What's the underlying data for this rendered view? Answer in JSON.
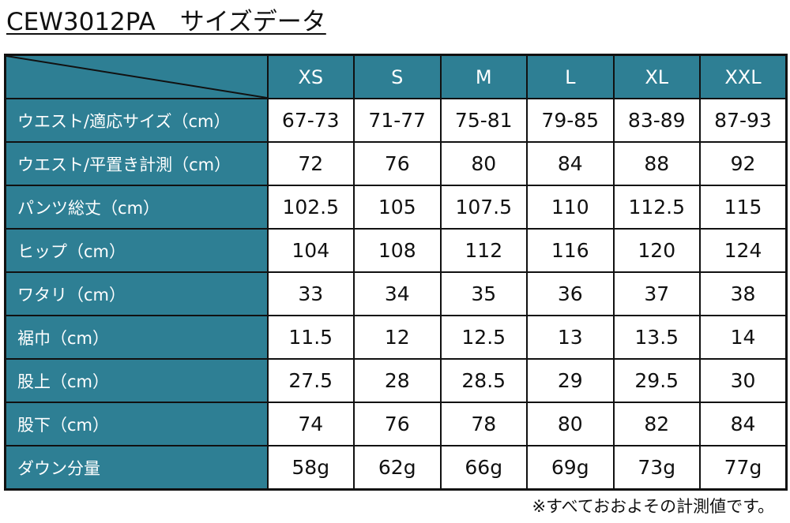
{
  "header": {
    "title": "CEW3012PA　サイズデータ"
  },
  "table": {
    "columns": [
      "XS",
      "S",
      "M",
      "L",
      "XL",
      "XXL"
    ],
    "rows": [
      {
        "label": "ウエスト/適応サイズ（cm）",
        "values": [
          "67-73",
          "71-77",
          "75-81",
          "79-85",
          "83-89",
          "87-93"
        ]
      },
      {
        "label": "ウエスト/平置き計測（cm）",
        "values": [
          "72",
          "76",
          "80",
          "84",
          "88",
          "92"
        ]
      },
      {
        "label": "パンツ総丈（cm）",
        "values": [
          "102.5",
          "105",
          "107.5",
          "110",
          "112.5",
          "115"
        ]
      },
      {
        "label": "ヒップ（cm）",
        "values": [
          "104",
          "108",
          "112",
          "116",
          "120",
          "124"
        ]
      },
      {
        "label": "ワタリ（cm）",
        "values": [
          "33",
          "34",
          "35",
          "36",
          "37",
          "38"
        ]
      },
      {
        "label": "裾巾（cm）",
        "values": [
          "11.5",
          "12",
          "12.5",
          "13",
          "13.5",
          "14"
        ]
      },
      {
        "label": "股上（cm）",
        "values": [
          "27.5",
          "28",
          "28.5",
          "29",
          "29.5",
          "30"
        ]
      },
      {
        "label": "股下（cm）",
        "values": [
          "74",
          "76",
          "78",
          "80",
          "82",
          "84"
        ]
      },
      {
        "label": "ダウン分量",
        "values": [
          "58g",
          "62g",
          "66g",
          "69g",
          "73g",
          "77g"
        ]
      }
    ]
  },
  "footer": {
    "note": "※すべておおよその計測値です。"
  }
}
